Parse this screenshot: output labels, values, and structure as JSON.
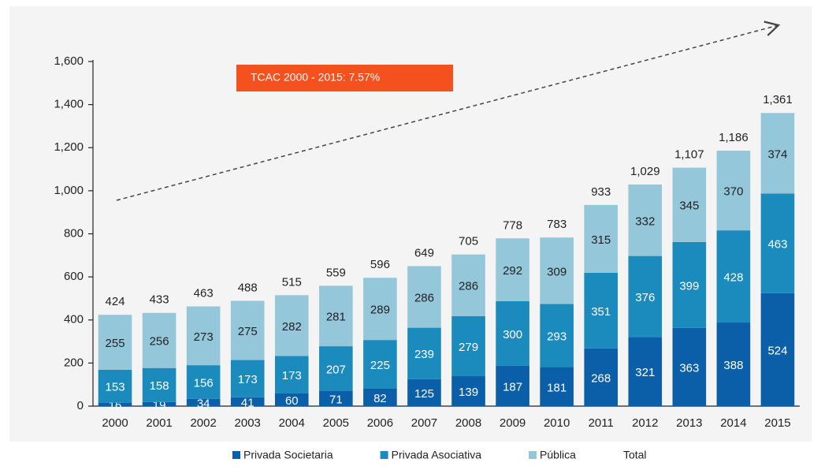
{
  "chart_data": {
    "type": "stacked_bar",
    "categories": [
      "2000",
      "2001",
      "2002",
      "2003",
      "2004",
      "2005",
      "2006",
      "2007",
      "2008",
      "2009",
      "2010",
      "2011",
      "2012",
      "2013",
      "2014",
      "2015"
    ],
    "series": [
      {
        "name": "Privada Societaria",
        "color": "#0b5ea8",
        "values": [
          16,
          19,
          34,
          41,
          60,
          71,
          82,
          125,
          139,
          187,
          181,
          268,
          321,
          363,
          388,
          524
        ]
      },
      {
        "name": "Privada Asociativa",
        "color": "#1b8bbd",
        "values": [
          153,
          158,
          156,
          173,
          173,
          207,
          225,
          239,
          279,
          300,
          293,
          351,
          376,
          399,
          428,
          463
        ]
      },
      {
        "name": "Pública",
        "color": "#95c7da",
        "values": [
          255,
          256,
          273,
          275,
          282,
          281,
          289,
          286,
          286,
          292,
          309,
          315,
          332,
          345,
          370,
          374
        ]
      },
      {
        "name": "Total",
        "values": [
          424,
          433,
          463,
          488,
          515,
          559,
          596,
          649,
          705,
          778,
          783,
          933,
          1029,
          1107,
          1186,
          1361
        ],
        "value_labels": [
          "424",
          "433",
          "463",
          "488",
          "515",
          "559",
          "596",
          "649",
          "705",
          "778",
          "783",
          "933",
          "1,029",
          "1,107",
          "1,186",
          "1,361"
        ]
      }
    ],
    "ylim": [
      0,
      1600
    ],
    "yticks": [
      0,
      200,
      400,
      600,
      800,
      {
        "value": 1000,
        "label": "1,000"
      },
      {
        "value": 1200,
        "label": "1,200"
      },
      {
        "value": 1400,
        "label": "1,400"
      },
      {
        "value": 1600,
        "label": "1,600"
      }
    ],
    "annotation": "TCAC 2000 - 2015: 7.57%"
  }
}
